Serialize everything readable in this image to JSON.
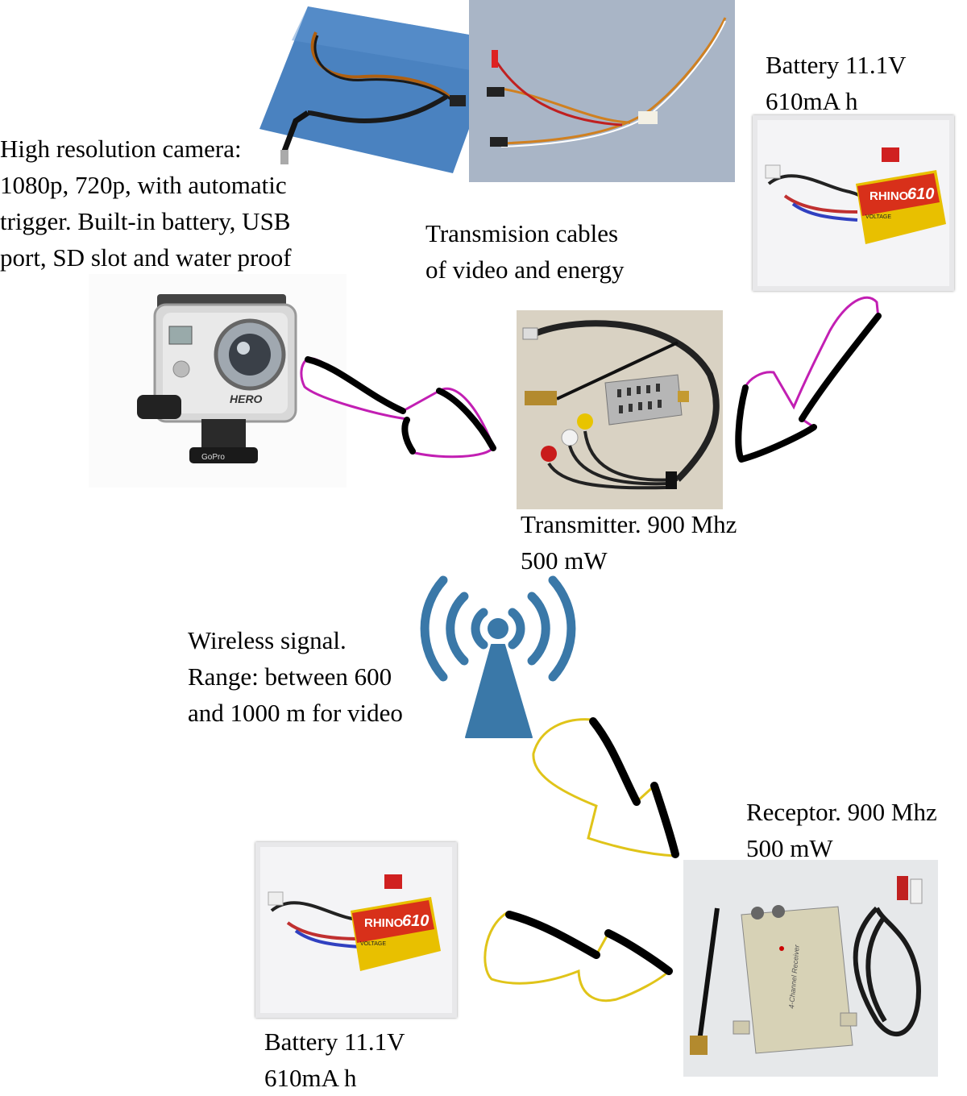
{
  "camera": {
    "lines": [
      "High resolution camera:",
      "1080p, 720p, with automatic",
      "trigger. Built-in battery, USB",
      "port, SD slot and water proof"
    ],
    "brand_mark": "HERO",
    "mount_mark": "GoPro"
  },
  "cables": {
    "lines": [
      "Transmision cables",
      "of video and energy"
    ]
  },
  "battery_top": {
    "lines": [
      "Battery 11.1V",
      "610mA h"
    ],
    "brand_mark": "RHINO",
    "model_mark": "610",
    "voltage_mark": "VOLTAGE"
  },
  "transmitter": {
    "lines": [
      "Transmitter. 900 Mhz",
      "500 mW"
    ]
  },
  "wireless": {
    "lines": [
      "Wireless signal.",
      "Range: between 600",
      "and 1000 m for video"
    ]
  },
  "receptor": {
    "lines": [
      "Receptor. 900 Mhz",
      "500 mW"
    ],
    "device_mark": "4-Channel Receiver"
  },
  "battery_bottom": {
    "lines": [
      "Battery 11.1V",
      "610mA h"
    ],
    "brand_mark": "RHINO",
    "model_mark": "610",
    "voltage_mark": "VOLTAGE"
  },
  "colors": {
    "arrow_magenta": "#c21fb3",
    "arrow_yellow": "#e0c419",
    "antenna_blue": "#3a78a8"
  },
  "icons": [
    "wireless-tower-icon",
    "arrow-icon"
  ]
}
